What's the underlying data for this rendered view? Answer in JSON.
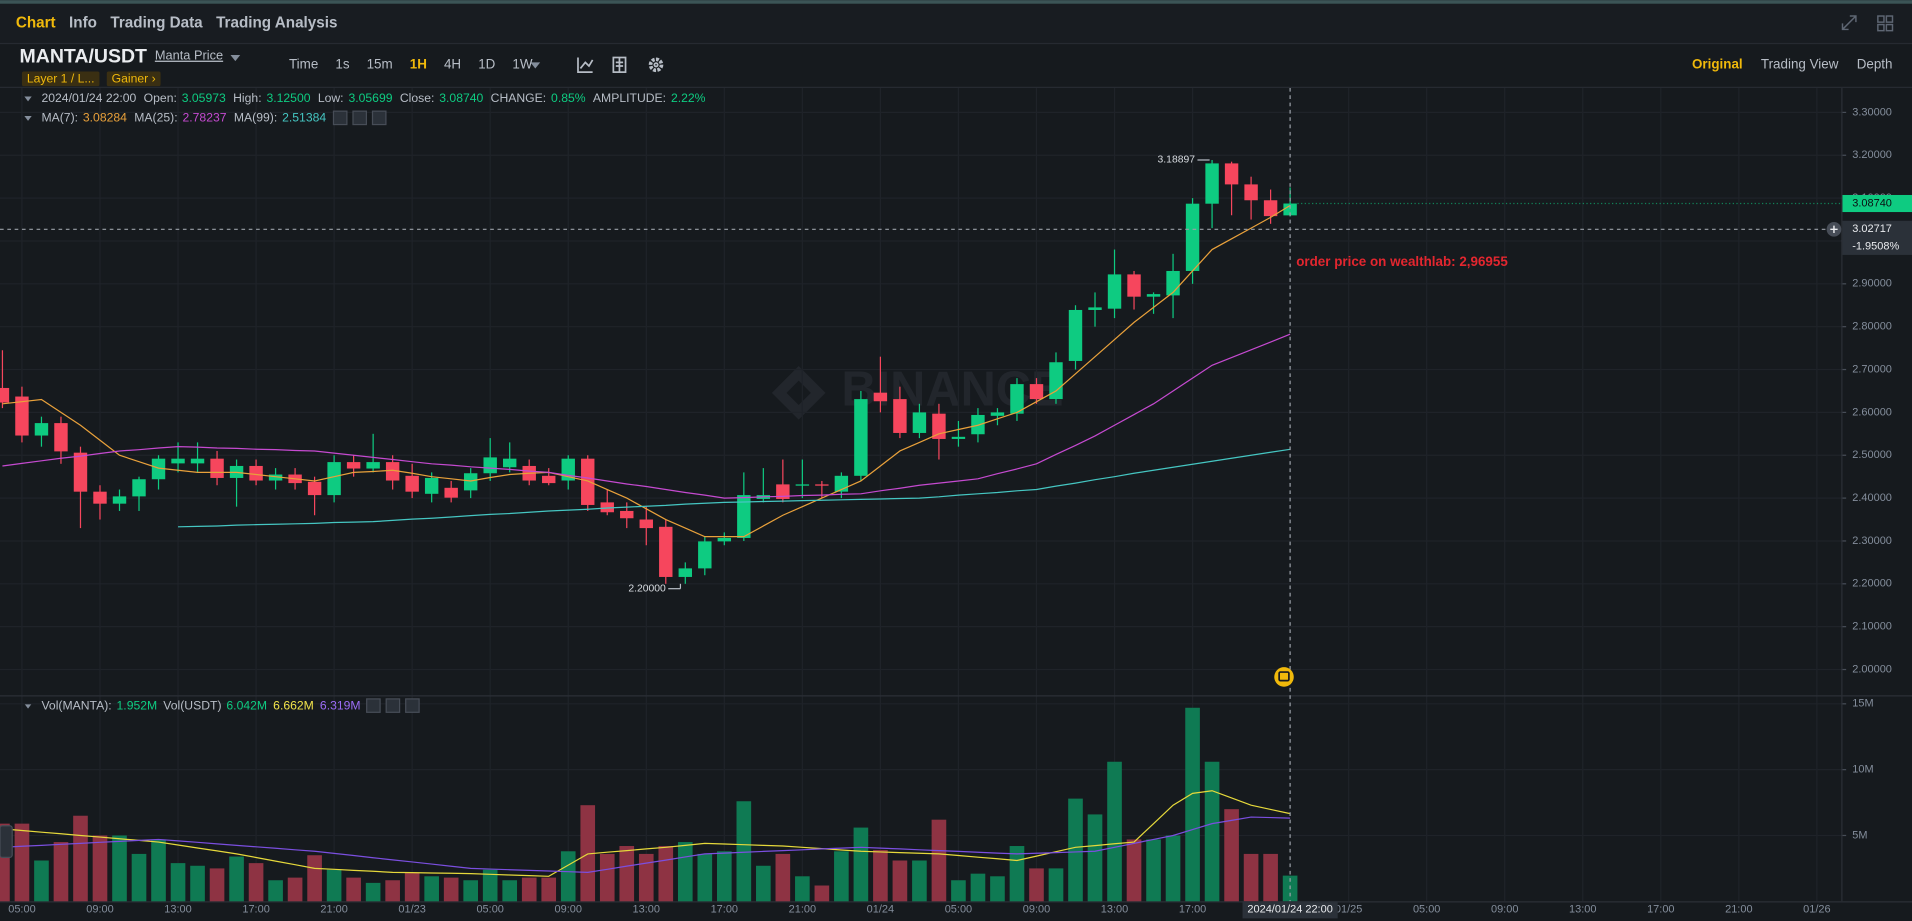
{
  "nav": {
    "tabs": [
      "Chart",
      "Info",
      "Trading Data",
      "Trading Analysis"
    ],
    "active": 0
  },
  "toolbar": {
    "symbol": "MANTA/USDT",
    "link": "Manta Price",
    "tags": [
      "Layer 1 / L...",
      "Gainer ›"
    ],
    "intervals": [
      "Time",
      "1s",
      "15m",
      "1H",
      "4H",
      "1D",
      "1W"
    ],
    "active_interval": 3,
    "views": [
      "Original",
      "Trading View",
      "Depth"
    ],
    "active_view": 0
  },
  "ohlc_legend": [
    {
      "label": "Open:",
      "value": "3.05973"
    },
    {
      "label": "High:",
      "value": "3.12500"
    },
    {
      "label": "Low:",
      "value": "3.05699"
    },
    {
      "label": "Close:",
      "value": "3.08740"
    },
    {
      "label": "CHANGE:",
      "value": "0.85%"
    },
    {
      "label": "AMPLITUDE:",
      "value": "2.22%"
    }
  ],
  "volume_legend": [
    {
      "label": "Vol(MANTA):",
      "value": "1.952M",
      "color": "#0ecb81"
    },
    {
      "label": "Vol(USDT)",
      "value": "6.042M",
      "color": "#0ecb81"
    },
    {
      "value": "6.662M",
      "color": "#f0e24a"
    },
    {
      "value": "6.319M",
      "color": "#9b6cf5"
    }
  ],
  "watermark": "BINANCE",
  "annotation": "order price on wealthlab: 2,96955",
  "chart_data": {
    "type": "candlestick",
    "categories": [
      null,
      "05:00",
      null,
      null,
      null,
      "09:00",
      null,
      null,
      null,
      "13:00",
      null,
      null,
      null,
      "17:00",
      null,
      null,
      null,
      "21:00",
      null,
      null,
      null,
      "01/23",
      null,
      null,
      null,
      "05:00",
      null,
      null,
      null,
      "09:00",
      null,
      null,
      null,
      "13:00",
      null,
      null,
      null,
      "17:00",
      null,
      null,
      null,
      "21:00",
      null,
      null,
      null,
      "01/24",
      null,
      null,
      null,
      "05:00",
      null,
      null,
      null,
      "09:00",
      null,
      null,
      null,
      "13:00",
      null,
      null,
      null,
      "17:00",
      null,
      null,
      null,
      null,
      "2024/01/24 22:00",
      null,
      null,
      "01/25",
      null,
      null,
      null,
      "05:00",
      null,
      null,
      null,
      "09:00",
      null,
      null,
      null,
      "13:00",
      null,
      null,
      null,
      "17:00",
      null,
      null,
      null,
      "21:00",
      null,
      null,
      null,
      "01/26",
      null
    ],
    "open": [
      2.657,
      2.637,
      2.546,
      2.575,
      2.506,
      2.415,
      2.387,
      2.404,
      2.444,
      2.481,
      2.481,
      2.492,
      2.447,
      2.475,
      2.441,
      2.455,
      2.438,
      2.407,
      2.484,
      2.469,
      2.484,
      2.452,
      2.41,
      2.424,
      2.418,
      2.458,
      2.472,
      2.475,
      2.452,
      2.441,
      2.492,
      2.39,
      2.37,
      2.35,
      2.333,
      2.216,
      2.236,
      2.299,
      2.307,
      2.398,
      2.432,
      2.429,
      2.432,
      2.415,
      2.452,
      2.646,
      2.631,
      2.552,
      2.597,
      2.538,
      2.549,
      2.592,
      2.597,
      2.666,
      2.631,
      2.72,
      2.839,
      2.842,
      2.922,
      2.87,
      2.873,
      2.93,
      3.087,
      3.181,
      3.132,
      3.095,
      3.05973,
      null,
      null,
      null,
      null,
      null,
      null,
      null,
      null,
      null,
      null,
      null,
      null,
      null,
      null,
      null,
      null,
      null,
      null,
      null,
      null,
      null,
      null,
      null,
      null,
      null,
      null,
      null,
      null
    ],
    "high": [
      2.745,
      2.66,
      2.59,
      2.59,
      2.52,
      2.43,
      2.42,
      2.45,
      2.5,
      2.53,
      2.53,
      2.51,
      2.49,
      2.49,
      2.47,
      2.47,
      2.45,
      2.5,
      2.5,
      2.55,
      2.5,
      2.48,
      2.46,
      2.44,
      2.47,
      2.54,
      2.53,
      2.49,
      2.47,
      2.5,
      2.5,
      2.42,
      2.39,
      2.38,
      2.35,
      2.25,
      2.31,
      2.32,
      2.46,
      2.47,
      2.49,
      2.49,
      2.44,
      2.46,
      2.65,
      2.73,
      2.66,
      2.62,
      2.62,
      2.58,
      2.61,
      2.61,
      2.68,
      2.68,
      2.74,
      2.85,
      2.88,
      2.98,
      2.93,
      2.88,
      2.97,
      3.1,
      3.18897,
      3.185,
      3.15,
      3.12,
      3.125,
      null,
      null,
      null,
      null,
      null,
      null,
      null,
      null,
      null,
      null,
      null,
      null,
      null,
      null,
      null,
      null,
      null,
      null,
      null,
      null,
      null,
      null,
      null,
      null,
      null,
      null,
      null,
      null
    ],
    "low": [
      2.61,
      2.53,
      2.52,
      2.48,
      2.33,
      2.35,
      2.37,
      2.37,
      2.42,
      2.46,
      2.46,
      2.43,
      2.38,
      2.43,
      2.42,
      2.42,
      2.36,
      2.39,
      2.45,
      2.46,
      2.42,
      2.4,
      2.39,
      2.39,
      2.4,
      2.44,
      2.46,
      2.43,
      2.43,
      2.42,
      2.37,
      2.36,
      2.33,
      2.29,
      2.2,
      2.2,
      2.22,
      2.29,
      2.3,
      2.39,
      2.39,
      2.4,
      2.4,
      2.4,
      2.44,
      2.6,
      2.54,
      2.54,
      2.49,
      2.52,
      2.53,
      2.57,
      2.58,
      2.62,
      2.62,
      2.7,
      2.8,
      2.82,
      2.84,
      2.83,
      2.82,
      2.9,
      3.03,
      3.06,
      3.05,
      3.04,
      3.05699,
      null,
      null,
      null,
      null,
      null,
      null,
      null,
      null,
      null,
      null,
      null,
      null,
      null,
      null,
      null,
      null,
      null,
      null,
      null,
      null,
      null,
      null,
      null,
      null,
      null,
      null,
      null,
      null
    ],
    "close": [
      2.623,
      2.546,
      2.575,
      2.509,
      2.415,
      2.387,
      2.404,
      2.444,
      2.492,
      2.492,
      2.492,
      2.447,
      2.475,
      2.441,
      2.455,
      2.435,
      2.407,
      2.484,
      2.469,
      2.484,
      2.441,
      2.415,
      2.447,
      2.401,
      2.458,
      2.495,
      2.492,
      2.441,
      2.435,
      2.492,
      2.384,
      2.367,
      2.353,
      2.33,
      2.216,
      2.236,
      2.299,
      2.307,
      2.407,
      2.407,
      2.398,
      2.432,
      2.429,
      2.452,
      2.631,
      2.626,
      2.552,
      2.6,
      2.538,
      2.543,
      2.594,
      2.6,
      2.666,
      2.631,
      2.717,
      2.839,
      2.845,
      2.922,
      2.87,
      2.876,
      2.93,
      3.087,
      3.181,
      3.132,
      3.095,
      3.058,
      3.0874,
      null,
      null,
      null,
      null,
      null,
      null,
      null,
      null,
      null,
      null,
      null,
      null,
      null,
      null,
      null,
      null,
      null,
      null,
      null,
      null,
      null,
      null,
      null,
      null,
      null,
      null,
      null,
      null
    ],
    "up_color": "#0ecb81",
    "down_color": "#f6465d",
    "ylim": [
      1.94,
      3.357
    ],
    "yticks": [
      {
        "value": 2.0,
        "label": "2.00000"
      },
      {
        "value": 2.1,
        "label": "2.10000"
      },
      {
        "value": 2.2,
        "label": "2.20000"
      },
      {
        "value": 2.3,
        "label": "2.30000"
      },
      {
        "value": 2.4,
        "label": "2.40000"
      },
      {
        "value": 2.5,
        "label": "2.50000"
      },
      {
        "value": 2.6,
        "label": "2.60000"
      },
      {
        "value": 2.7,
        "label": "2.70000"
      },
      {
        "value": 2.8,
        "label": "2.80000"
      },
      {
        "value": 2.9,
        "label": "2.90000"
      },
      {
        "value": 3.0,
        "label": "3.00000"
      },
      {
        "value": 3.1,
        "label": "3.10000"
      },
      {
        "value": 3.2,
        "label": "3.20000"
      },
      {
        "value": 3.3,
        "label": "3.30000"
      }
    ],
    "grid": true,
    "max_label": "3.18897",
    "min_label": "2.20000",
    "price_label": "3.08740",
    "crosshair": {
      "price": 3.02717,
      "change": "-1.9508%"
    },
    "ma": [
      {
        "name": "MA(7):",
        "value_label": "3.08284",
        "color": "#e9a13b",
        "values": [
          2.62,
          2.625,
          2.63,
          2.6,
          2.57,
          2.535,
          2.5,
          2.485,
          2.47,
          2.465,
          2.46,
          2.46,
          2.46,
          2.455,
          2.45,
          2.445,
          2.44,
          2.45,
          2.46,
          2.462,
          2.465,
          2.458,
          2.45,
          2.445,
          2.44,
          2.448,
          2.455,
          2.458,
          2.46,
          2.45,
          2.44,
          2.42,
          2.4,
          2.375,
          2.35,
          2.33,
          2.31,
          2.31,
          2.31,
          2.335,
          2.36,
          2.38,
          2.4,
          2.42,
          2.44,
          2.475,
          2.51,
          2.53,
          2.55,
          2.56,
          2.57,
          2.585,
          2.6,
          2.625,
          2.65,
          2.69,
          2.73,
          2.77,
          2.81,
          2.845,
          2.88,
          2.93,
          2.98,
          3.005,
          3.03,
          3.055,
          3.08284,
          null,
          null,
          null,
          null,
          null,
          null,
          null,
          null,
          null,
          null,
          null,
          null,
          null,
          null,
          null,
          null,
          null,
          null,
          null,
          null,
          null,
          null,
          null,
          null,
          null,
          null,
          null,
          null
        ]
      },
      {
        "name": "MA(25):",
        "value_label": "2.78237",
        "color": "#c54ad0",
        "values": [
          2.475,
          2.481,
          2.487,
          2.493,
          2.498,
          2.504,
          2.51,
          2.513,
          2.517,
          2.52,
          2.519,
          2.517,
          2.516,
          2.514,
          2.513,
          2.511,
          2.51,
          2.505,
          2.5,
          2.495,
          2.49,
          2.485,
          2.48,
          2.477,
          2.473,
          2.47,
          2.467,
          2.463,
          2.46,
          2.453,
          2.447,
          2.44,
          2.433,
          2.427,
          2.42,
          2.413,
          2.407,
          2.4,
          2.401,
          2.403,
          2.404,
          2.406,
          2.407,
          2.409,
          2.41,
          2.417,
          2.423,
          2.43,
          2.435,
          2.44,
          2.445,
          2.457,
          2.468,
          2.48,
          2.502,
          2.523,
          2.545,
          2.57,
          2.595,
          2.62,
          2.65,
          2.68,
          2.71,
          2.728,
          2.746,
          2.764,
          2.78237,
          null,
          null,
          null,
          null,
          null,
          null,
          null,
          null,
          null,
          null,
          null,
          null,
          null,
          null,
          null,
          null,
          null,
          null,
          null,
          null,
          null,
          null,
          null,
          null,
          null,
          null,
          null,
          null
        ]
      },
      {
        "name": "MA(99):",
        "value_label": "2.51384",
        "color": "#45c6c2",
        "values": [
          null,
          null,
          null,
          null,
          null,
          null,
          null,
          null,
          null,
          2.333,
          2.334,
          2.335,
          2.337,
          2.338,
          2.339,
          2.34,
          2.341,
          2.343,
          2.344,
          2.345,
          2.348,
          2.351,
          2.353,
          2.356,
          2.359,
          2.362,
          2.364,
          2.367,
          2.37,
          2.372,
          2.374,
          2.377,
          2.379,
          2.381,
          2.383,
          2.386,
          2.388,
          2.39,
          2.391,
          2.392,
          2.393,
          2.394,
          2.395,
          2.396,
          2.397,
          2.398,
          2.399,
          2.4,
          2.403,
          2.407,
          2.41,
          2.413,
          2.417,
          2.42,
          2.428,
          2.435,
          2.443,
          2.45,
          2.458,
          2.465,
          2.472,
          2.479,
          2.486,
          2.493,
          2.5,
          2.507,
          2.51384,
          null,
          null,
          null,
          null,
          null,
          null,
          null,
          null,
          null,
          null,
          null,
          null,
          null,
          null,
          null,
          null,
          null,
          null,
          null,
          null,
          null,
          null,
          null,
          null,
          null,
          null,
          null,
          null
        ]
      }
    ],
    "volume": {
      "type": "bar",
      "up_color": "#0f7a53",
      "down_color": "#8e3343",
      "ylim": [
        0,
        15.56
      ],
      "yticks": [
        {
          "value": 5,
          "label": "5M"
        },
        {
          "value": 10,
          "label": "10M"
        },
        {
          "value": 15,
          "label": "15M"
        }
      ],
      "values": [
        5.9,
        5.9,
        3.1,
        4.5,
        6.5,
        5.0,
        5.0,
        3.6,
        4.7,
        2.9,
        2.7,
        2.5,
        3.4,
        2.9,
        1.6,
        1.8,
        3.5,
        2.4,
        1.8,
        1.4,
        1.6,
        2.2,
        1.9,
        1.8,
        1.6,
        2.4,
        1.6,
        1.8,
        1.8,
        3.8,
        7.3,
        3.6,
        4.2,
        3.6,
        4.2,
        4.5,
        3.6,
        3.8,
        7.6,
        2.7,
        3.6,
        1.9,
        1.2,
        3.8,
        5.6,
        3.9,
        3.1,
        3.1,
        6.2,
        1.6,
        2.1,
        1.9,
        4.2,
        2.5,
        2.5,
        7.8,
        6.6,
        10.6,
        4.7,
        4.7,
        5.0,
        14.7,
        10.6,
        7.0,
        3.6,
        3.6,
        1.952,
        null,
        null,
        null,
        null,
        null,
        null,
        null,
        null,
        null,
        null,
        null,
        null,
        null,
        null,
        null,
        null,
        null,
        null,
        null,
        null,
        null,
        null,
        null,
        null,
        null,
        null,
        null,
        null
      ],
      "ma": [
        {
          "color": "#e6d93b",
          "values": [
            5.5,
            5.38,
            5.25,
            5.13,
            5.0,
            4.88,
            4.75,
            4.63,
            4.5,
            4.28,
            4.05,
            3.83,
            3.6,
            3.33,
            3.05,
            2.78,
            2.5,
            2.43,
            2.35,
            2.28,
            2.2,
            2.18,
            2.15,
            2.13,
            2.1,
            2.05,
            2.0,
            1.95,
            1.9,
            2.75,
            3.6,
            3.73,
            3.85,
            3.98,
            4.1,
            4.25,
            4.4,
            4.35,
            4.3,
            4.25,
            4.2,
            4.1,
            4.0,
            3.9,
            3.8,
            3.75,
            3.7,
            3.65,
            3.6,
            3.48,
            3.35,
            3.23,
            3.1,
            3.43,
            3.77,
            4.1,
            4.23,
            4.37,
            4.5,
            5.9,
            7.3,
            8.2,
            8.4,
            7.85,
            7.3,
            6.98,
            6.662,
            null,
            null,
            null,
            null,
            null,
            null,
            null,
            null,
            null,
            null,
            null,
            null,
            null,
            null,
            null,
            null,
            null,
            null,
            null,
            null,
            null,
            null,
            null,
            null,
            null,
            null,
            null,
            null
          ]
        },
        {
          "color": "#7b4fe0",
          "values": [
            4.1,
            4.18,
            4.25,
            4.33,
            4.4,
            4.48,
            4.55,
            4.63,
            4.7,
            4.59,
            4.48,
            4.36,
            4.25,
            4.14,
            4.03,
            3.91,
            3.8,
            3.64,
            3.48,
            3.31,
            3.15,
            2.99,
            2.83,
            2.66,
            2.5,
            2.45,
            2.4,
            2.35,
            2.3,
            2.25,
            2.2,
            2.43,
            2.67,
            2.9,
            3.13,
            3.37,
            3.6,
            3.66,
            3.73,
            3.79,
            3.85,
            3.91,
            3.98,
            4.04,
            4.1,
            4.04,
            3.98,
            3.91,
            3.85,
            3.79,
            3.73,
            3.66,
            3.6,
            3.65,
            3.7,
            3.75,
            3.8,
            4.1,
            4.4,
            4.7,
            5.0,
            5.45,
            5.9,
            6.15,
            6.4,
            6.36,
            6.319,
            null,
            null,
            null,
            null,
            null,
            null,
            null,
            null,
            null,
            null,
            null,
            null,
            null,
            null,
            null,
            null,
            null,
            null,
            null,
            null,
            null,
            null,
            null,
            null,
            null,
            null,
            null,
            null
          ]
        }
      ]
    }
  }
}
